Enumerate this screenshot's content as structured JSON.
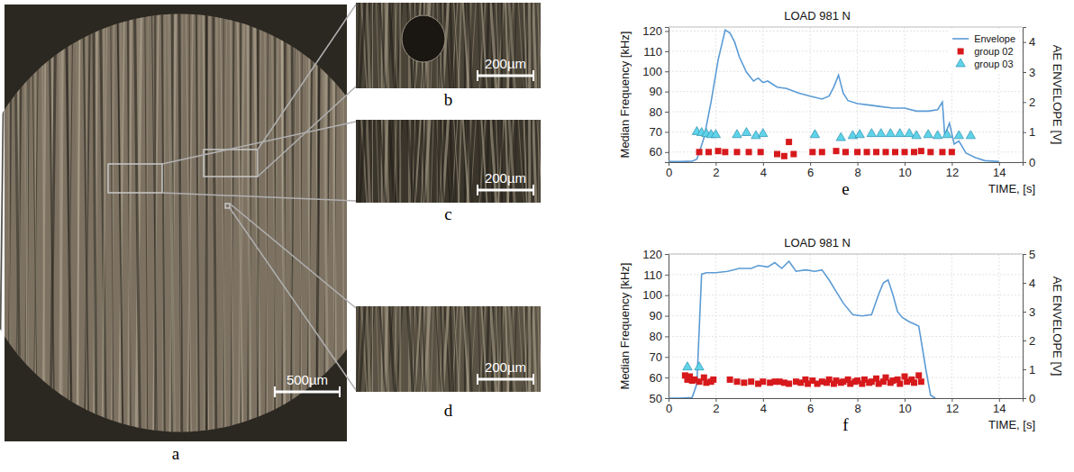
{
  "images": [
    {
      "panel": "a",
      "scale_bar": "500µm"
    },
    {
      "panel": "b",
      "scale_bar": "200µm"
    },
    {
      "panel": "c",
      "scale_bar": "200µm"
    },
    {
      "panel": "d",
      "scale_bar": "200µm"
    }
  ],
  "chart_data": [
    {
      "type": "scatter",
      "panel": "e",
      "title": "LOAD 981 N",
      "x_label": "TIME, [s]",
      "y_label": "Median Frequency [kHz]",
      "y2_label": "AE ENVELOPE [V]",
      "xlim": [
        0,
        15
      ],
      "xticks": [
        0,
        2,
        4,
        6,
        8,
        10,
        12,
        14
      ],
      "ylim": [
        55,
        122
      ],
      "yticks": [
        60,
        70,
        80,
        90,
        100,
        110,
        120
      ],
      "y2lim": [
        0,
        4.5
      ],
      "y2ticks": [
        0,
        1,
        2,
        3,
        4
      ],
      "grid": true,
      "legend": "upper right",
      "series": [
        {
          "name": "Envelope",
          "type": "line",
          "axis": "y2",
          "color": "#5b9bd5",
          "line_style": "solid",
          "x": [
            0,
            0.5,
            1.0,
            1.2,
            1.5,
            1.8,
            2.1,
            2.4,
            2.6,
            2.8,
            3.0,
            3.3,
            3.6,
            3.8,
            4.0,
            4.2,
            4.6,
            5.0,
            5.5,
            6.0,
            6.5,
            6.8,
            7.0,
            7.2,
            7.4,
            7.6,
            8.0,
            8.5,
            9.0,
            9.5,
            10.0,
            10.5,
            11.0,
            11.4,
            11.6,
            11.7,
            11.9,
            12.1,
            12.3,
            12.6,
            13.0,
            13.4,
            14.0
          ],
          "values": [
            0.02,
            0.02,
            0.03,
            0.1,
            0.8,
            2.0,
            3.4,
            4.4,
            4.3,
            4.0,
            3.5,
            3.0,
            2.7,
            2.8,
            2.65,
            2.7,
            2.5,
            2.45,
            2.3,
            2.2,
            2.1,
            2.2,
            2.5,
            2.9,
            2.3,
            2.05,
            1.95,
            1.9,
            1.85,
            1.8,
            1.8,
            1.7,
            1.7,
            1.75,
            2.0,
            0.9,
            1.3,
            0.6,
            0.7,
            0.3,
            0.15,
            0.05,
            0.02
          ]
        },
        {
          "name": "group 02",
          "type": "scatter",
          "color": "#d7191c",
          "marker": "square",
          "x": [
            1.3,
            1.7,
            2.1,
            2.4,
            2.9,
            3.4,
            3.9,
            4.6,
            4.9,
            5.1,
            5.3,
            6.1,
            6.5,
            7.1,
            7.5,
            8.0,
            8.4,
            8.8,
            9.2,
            9.6,
            10.0,
            10.4,
            10.7,
            11.1,
            11.6,
            12.0
          ],
          "values": [
            60,
            60,
            60.5,
            60,
            60,
            60,
            60,
            59,
            58,
            65,
            59,
            60,
            60,
            60.5,
            60,
            60,
            60,
            60,
            60,
            60,
            60,
            60,
            60.5,
            60,
            60,
            60
          ]
        },
        {
          "name": "group 03",
          "type": "scatter",
          "color": "#5fd3e8",
          "marker": "triangle",
          "x": [
            1.2,
            1.4,
            1.6,
            1.8,
            2.0,
            2.9,
            3.3,
            3.7,
            4.0,
            6.2,
            7.3,
            7.8,
            8.1,
            8.6,
            9.0,
            9.4,
            9.8,
            10.2,
            10.5,
            11.0,
            11.4,
            11.8,
            12.3,
            12.8
          ],
          "values": [
            70,
            69.5,
            69,
            68.5,
            68.5,
            68.5,
            69.5,
            68,
            69,
            68.5,
            67,
            68,
            68.5,
            69,
            69,
            69,
            69,
            69,
            68,
            68.5,
            68,
            68.5,
            68,
            68
          ]
        }
      ]
    },
    {
      "type": "scatter",
      "panel": "f",
      "title": "LOAD 981 N",
      "x_label": "TIME, [s]",
      "y_label": "Median Frequency [kHz]",
      "y2_label": "AE ENVELOPE [V]",
      "xlim": [
        0,
        15
      ],
      "xticks": [
        0,
        2,
        4,
        6,
        8,
        10,
        12,
        14
      ],
      "ylim": [
        50,
        120
      ],
      "yticks": [
        50,
        60,
        70,
        80,
        90,
        100,
        110,
        120
      ],
      "y2lim": [
        0,
        5
      ],
      "y2ticks": [
        0,
        1,
        2,
        3,
        4,
        5
      ],
      "grid": true,
      "series": [
        {
          "name": "Envelope",
          "type": "line",
          "axis": "y2",
          "color": "#5b9bd5",
          "line_style": "solid",
          "x": [
            0,
            0.5,
            1.0,
            1.2,
            1.4,
            1.6,
            2.0,
            2.5,
            3.0,
            3.5,
            3.8,
            4.2,
            4.5,
            4.8,
            5.1,
            5.4,
            5.8,
            6.2,
            6.5,
            6.8,
            7.1,
            7.4,
            7.8,
            8.2,
            8.6,
            8.9,
            9.1,
            9.3,
            9.5,
            9.7,
            9.9,
            10.2,
            10.6,
            10.9,
            11.1,
            11.3
          ],
          "values": [
            0,
            0,
            0.02,
            0.5,
            4.3,
            4.35,
            4.35,
            4.4,
            4.5,
            4.5,
            4.6,
            4.55,
            4.7,
            4.5,
            4.75,
            4.4,
            4.45,
            4.4,
            4.45,
            4.1,
            3.7,
            3.3,
            2.9,
            2.85,
            2.9,
            3.6,
            4.0,
            4.1,
            3.6,
            3.0,
            2.8,
            2.65,
            2.5,
            1.0,
            0.1,
            0
          ]
        },
        {
          "name": "group 02",
          "type": "scatter",
          "color": "#d7191c",
          "marker": "square",
          "x": [
            0.7,
            0.8,
            0.9,
            1.0,
            1.1,
            1.3,
            1.5,
            1.6,
            1.8,
            1.9,
            2.6,
            2.9,
            3.2,
            3.5,
            3.8,
            4.0,
            4.3,
            4.5,
            4.7,
            4.9,
            5.1,
            5.4,
            5.6,
            5.8,
            5.9,
            6.1,
            6.3,
            6.5,
            6.7,
            6.8,
            7.0,
            7.1,
            7.3,
            7.4,
            7.6,
            7.7,
            7.9,
            8.0,
            8.2,
            8.3,
            8.5,
            8.6,
            8.8,
            8.9,
            9.1,
            9.2,
            9.4,
            9.5,
            9.7,
            9.8,
            10.0,
            10.1,
            10.3,
            10.4,
            10.6,
            10.7
          ],
          "values": [
            61,
            59,
            60.5,
            58.5,
            59,
            58,
            60,
            57.5,
            58,
            59,
            59,
            58,
            57.5,
            58,
            57,
            58,
            57.5,
            58,
            58,
            57.5,
            57,
            58,
            57.5,
            59,
            57,
            58.5,
            57,
            58,
            57.5,
            59,
            57,
            58.5,
            57.5,
            58,
            59,
            57,
            58,
            58.5,
            57,
            59,
            57.5,
            58,
            59.5,
            57,
            58,
            60,
            57.5,
            58.5,
            59,
            57,
            60.5,
            58,
            59,
            57.5,
            61,
            58
          ]
        },
        {
          "name": "group 03",
          "type": "scatter",
          "color": "#5fd3e8",
          "marker": "triangle",
          "x": [
            0.8,
            1.3
          ],
          "values": [
            65,
            65
          ]
        }
      ]
    }
  ]
}
